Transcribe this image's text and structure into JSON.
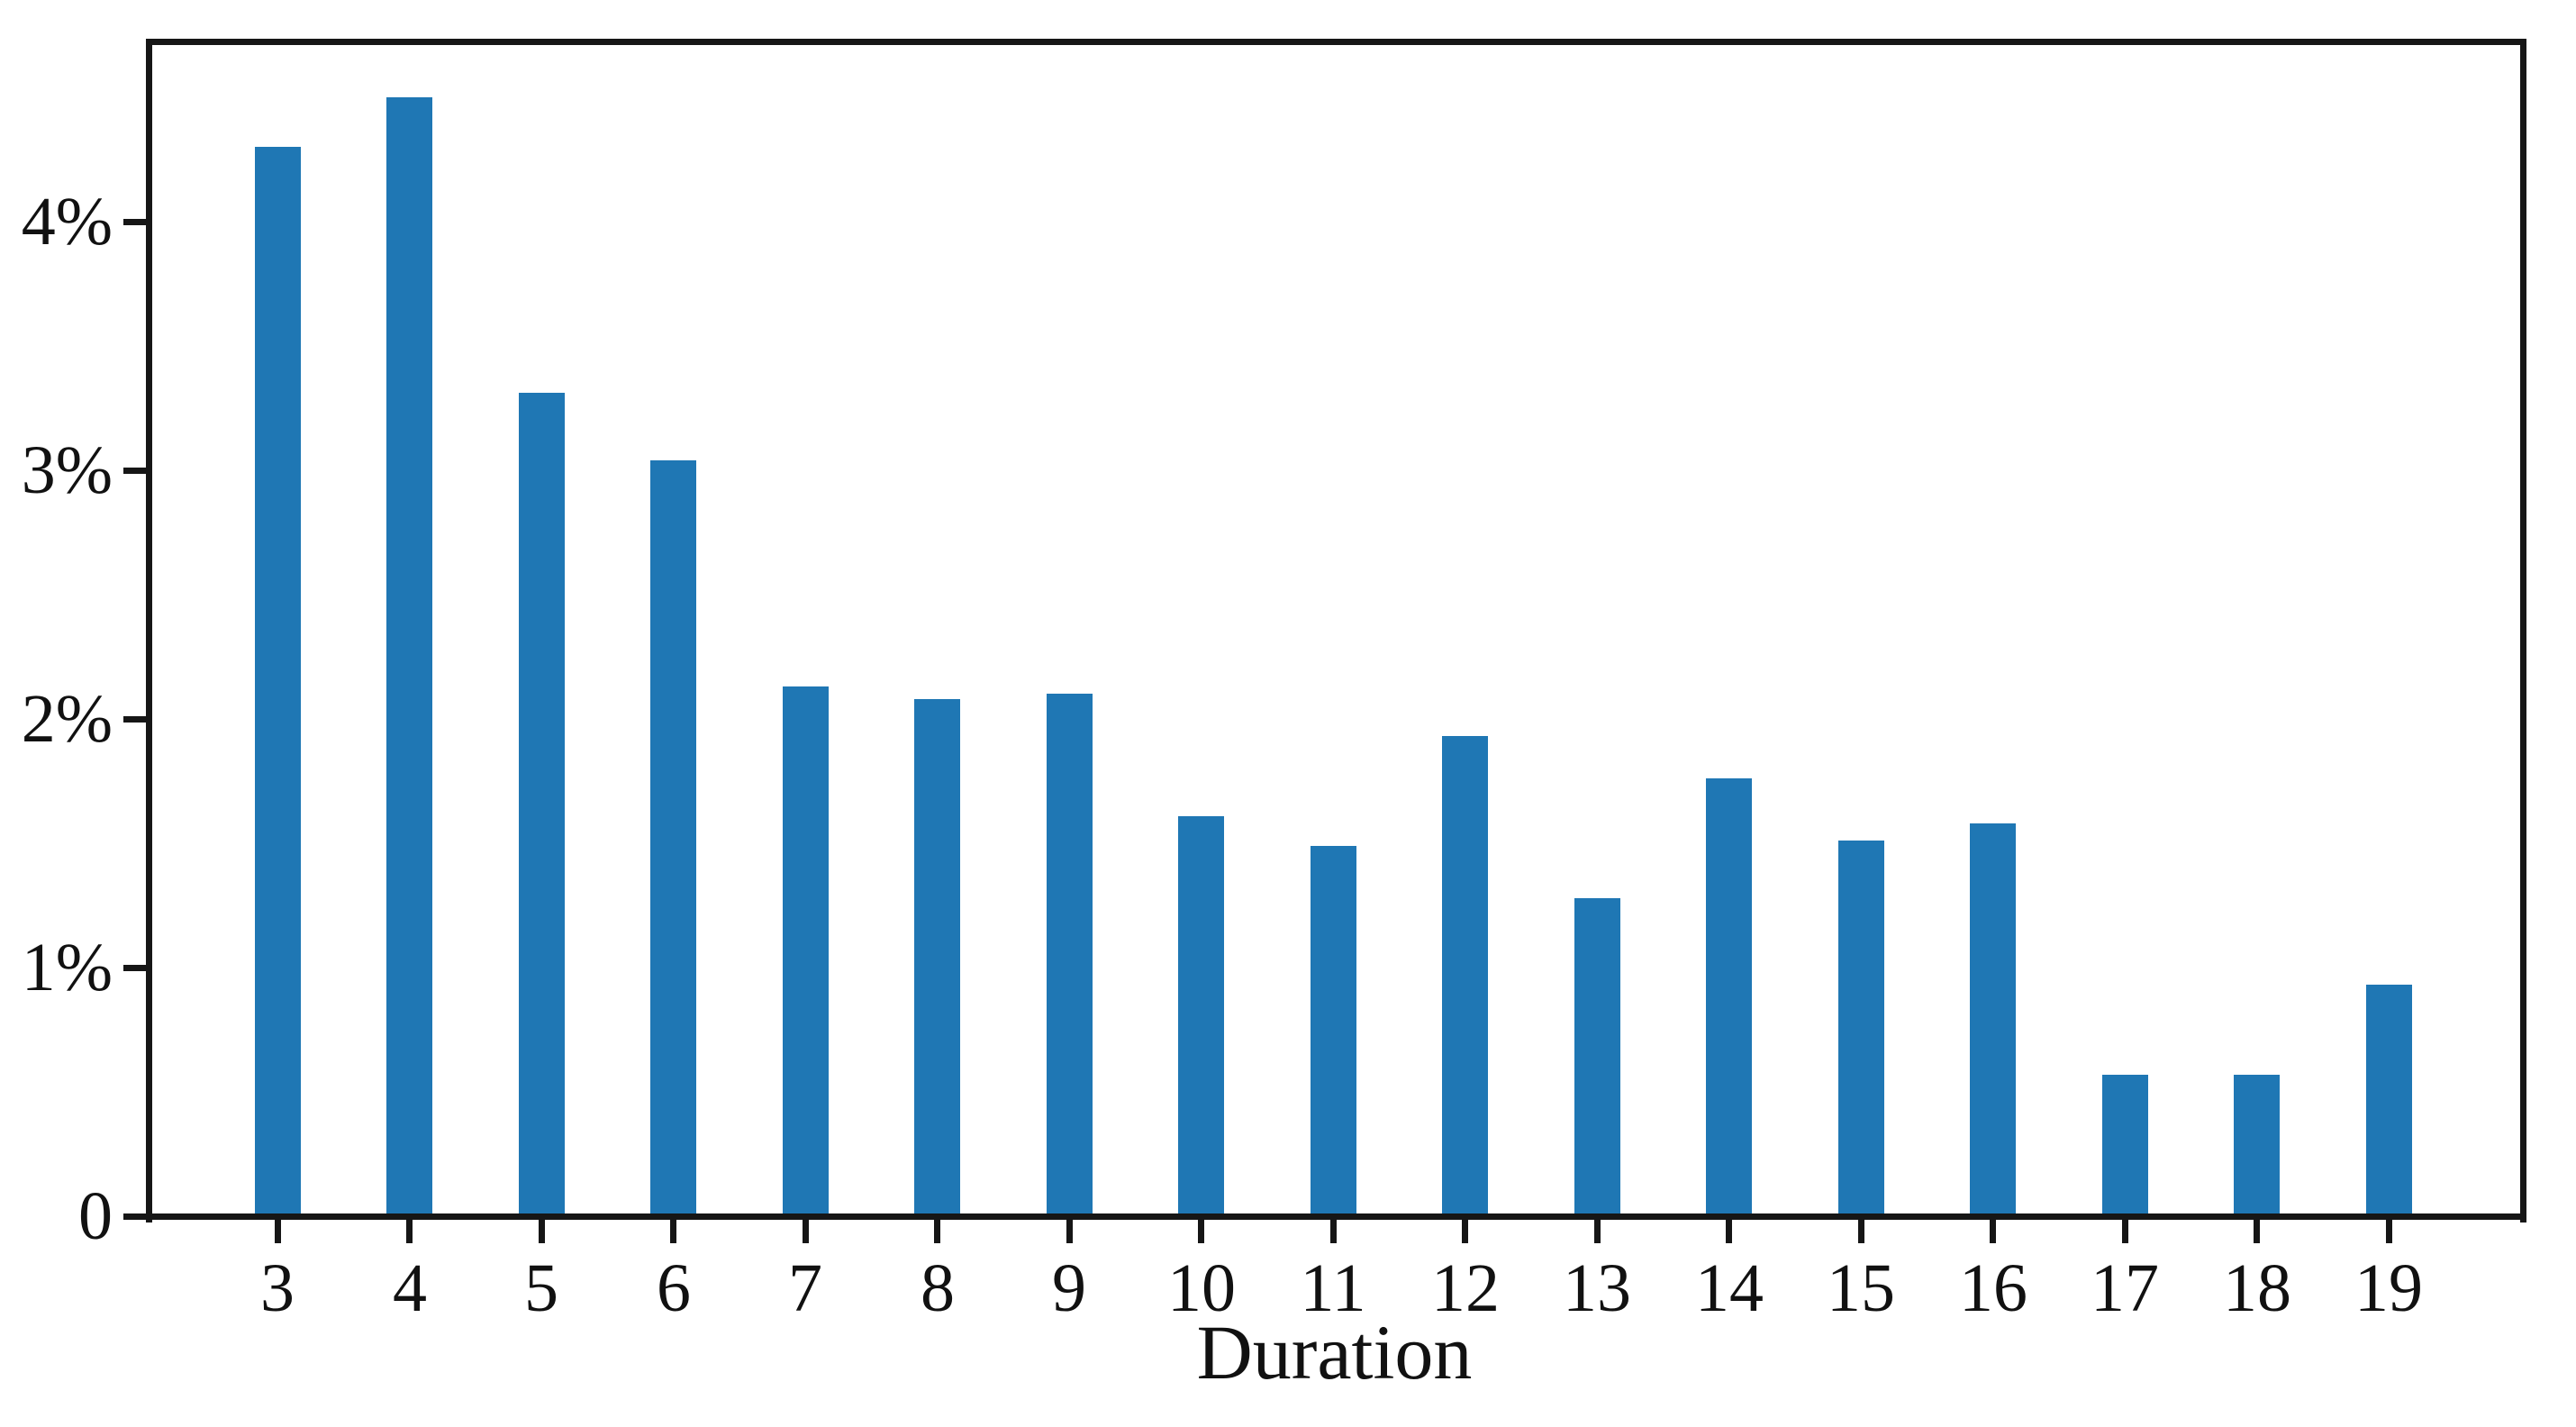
{
  "chart_data": {
    "type": "bar",
    "title": "",
    "xlabel": "Duration",
    "ylabel": "",
    "unit": "%",
    "categories": [
      "3",
      "4",
      "5",
      "6",
      "7",
      "8",
      "9",
      "10",
      "11",
      "12",
      "13",
      "14",
      "15",
      "16",
      "17",
      "18",
      "19"
    ],
    "values": [
      4.3,
      4.5,
      3.31,
      3.04,
      2.13,
      2.08,
      2.1,
      1.61,
      1.49,
      1.93,
      1.28,
      1.76,
      1.51,
      1.58,
      0.57,
      0.57,
      0.93
    ],
    "y_ticks": [
      {
        "value": 0,
        "label": "0"
      },
      {
        "value": 1,
        "label": "1%"
      },
      {
        "value": 2,
        "label": "2%"
      },
      {
        "value": 3,
        "label": "3%"
      },
      {
        "value": 4,
        "label": "4%"
      }
    ],
    "ylim": [
      0,
      4.74
    ],
    "grid": false,
    "legend_position": "none",
    "bar_color": "#1f77b4",
    "axis_color": "#161616",
    "text_color": "#111111",
    "background_color": "#ffffff"
  }
}
